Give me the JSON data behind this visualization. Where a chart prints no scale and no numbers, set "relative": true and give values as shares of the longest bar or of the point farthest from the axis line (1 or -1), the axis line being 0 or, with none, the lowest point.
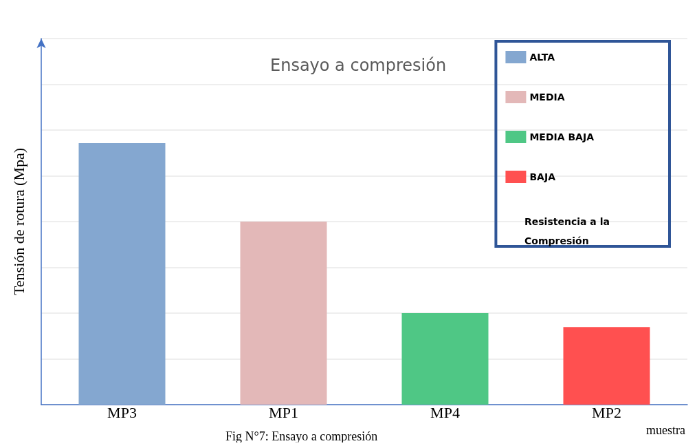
{
  "chart_data": {
    "type": "bar",
    "title": "Ensayo a compresión",
    "xlabel": "muestra",
    "ylabel": "Tensión de rotura (Mpa)",
    "legend_title": "Resistencia a la Compresión",
    "annotations": [
      "Fig N°7: Ensayo a compresión"
    ],
    "categories": [
      "MP3",
      "MP1",
      "MP4",
      "MP2"
    ],
    "relative": true,
    "stacked": true,
    "grid": "y",
    "legend": "top right",
    "series": [
      {
        "name": "ALTA",
        "color": "#84a7d0",
        "values": [
          1,
          null,
          null,
          null
        ]
      },
      {
        "name": "MEDIA",
        "color": "#e3b8b8",
        "values": [
          null,
          0.7,
          null,
          null
        ]
      },
      {
        "name": "MEDIA BAJA",
        "color": "#4fc785",
        "values": [
          null,
          null,
          0.35,
          null
        ]
      },
      {
        "name": "BAJA",
        "color": "#ff5050",
        "values": [
          null,
          null,
          null,
          0.297
        ]
      }
    ]
  }
}
